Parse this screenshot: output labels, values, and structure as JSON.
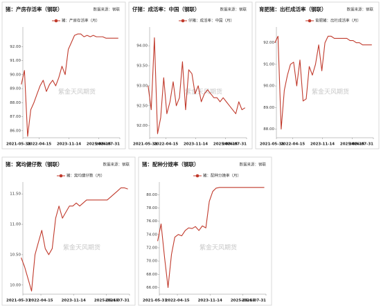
{
  "chart_data": [
    {
      "type": "line",
      "title": "猪：产房存活率（钢联）",
      "source": "数据来源：钢联",
      "watermark": "紫金天风期货",
      "x": [
        "2021-05",
        "2021-07",
        "2021-09",
        "2021-11",
        "2022-01",
        "2022-03",
        "2022-05",
        "2022-07",
        "2022-09",
        "2022-11",
        "2023-01",
        "2023-03",
        "2023-05",
        "2023-07",
        "2023-09",
        "2023-11",
        "2024-01",
        "2024-03",
        "2024-05",
        "2024-07",
        "2024-09",
        "2024-11",
        "2025-01",
        "2025-03",
        "2025-05",
        "2025-07",
        "2025-09",
        "2025-11",
        "2026-01",
        "2026-03",
        "2026-05",
        "2026-07"
      ],
      "series": [
        {
          "name": "猪：产房存活率（月）",
          "color": "#c0392b",
          "values": [
            89.3,
            90.3,
            85.6,
            87.5,
            88.0,
            88.6,
            89.2,
            89.6,
            88.8,
            89.3,
            89.6,
            89.2,
            89.8,
            90.6,
            90.0,
            91.8,
            92.3,
            92.8,
            92.9,
            92.9,
            92.7,
            92.8,
            92.7,
            92.8,
            92.7,
            92.7,
            92.7,
            92.6,
            92.6,
            92.6,
            92.6,
            92.6
          ]
        }
      ],
      "xlim": [
        "2021-05-31",
        "2026-07-31"
      ],
      "xticks": [
        "2021-05-31",
        "2022-04-15",
        "2023-11-14",
        "2025-06-15",
        "2026-07-31"
      ],
      "ylim": [
        85.5,
        93.2
      ],
      "yticks": [
        {
          "value": 86,
          "label": "86.00"
        },
        {
          "value": 87,
          "label": "87.00"
        },
        {
          "value": 88,
          "label": "88.00"
        },
        {
          "value": 89,
          "label": "89.00"
        },
        {
          "value": 90,
          "label": "90.00"
        },
        {
          "value": 91,
          "label": "91.00"
        },
        {
          "value": 92,
          "label": "92.00"
        }
      ]
    },
    {
      "type": "line",
      "title": "仔猪：成活率：中国（钢联）",
      "source": "数据来源：钢联",
      "watermark": "紫金天风期货",
      "x": [
        "2021-05",
        "2021-07",
        "2021-09",
        "2021-11",
        "2022-01",
        "2022-03",
        "2022-05",
        "2022-07",
        "2022-09",
        "2022-11",
        "2023-01",
        "2023-03",
        "2023-05",
        "2023-07",
        "2023-09",
        "2023-11",
        "2024-01",
        "2024-03",
        "2024-05",
        "2024-07",
        "2024-09",
        "2024-11",
        "2025-01",
        "2025-03",
        "2025-05",
        "2025-07",
        "2025-09",
        "2025-11",
        "2026-01",
        "2026-03",
        "2026-05",
        "2026-07"
      ],
      "series": [
        {
          "name": "仔猪：成活率：中国（月）",
          "color": "#c0392b",
          "values": [
            93.0,
            92.4,
            94.2,
            91.8,
            92.2,
            93.2,
            92.3,
            92.6,
            93.1,
            92.5,
            92.7,
            93.6,
            92.4,
            93.4,
            93.3,
            92.8,
            93.0,
            92.6,
            92.8,
            92.9,
            92.8,
            92.7,
            92.7,
            92.6,
            92.7,
            92.6,
            92.5,
            92.4,
            92.3,
            92.6,
            92.4,
            92.45
          ]
        }
      ],
      "xlim": [
        "2021-05-31",
        "2026-07-31"
      ],
      "xticks": [
        "2021-05-31",
        "2022-04-15",
        "2023-11-14",
        "2025-06-15",
        "2026-07-31"
      ],
      "ylim": [
        91.7,
        94.4
      ],
      "yticks": [
        {
          "value": 92,
          "label": "92.00"
        },
        {
          "value": 92.5,
          "label": "92.50"
        },
        {
          "value": 93,
          "label": "93.00"
        },
        {
          "value": 93.5,
          "label": "93.50"
        },
        {
          "value": 94,
          "label": "94.00"
        }
      ]
    },
    {
      "type": "line",
      "title": "育肥猪：出栏成活率（钢联）",
      "source": "数据来源：钢联",
      "watermark": "紫金天风期货",
      "x": [
        "2021-05",
        "2021-07",
        "2021-09",
        "2021-11",
        "2022-01",
        "2022-03",
        "2022-05",
        "2022-07",
        "2022-09",
        "2022-11",
        "2023-01",
        "2023-03",
        "2023-05",
        "2023-07",
        "2023-09",
        "2023-11",
        "2024-01",
        "2024-03",
        "2024-05",
        "2024-07",
        "2024-09",
        "2024-11",
        "2025-01",
        "2025-03",
        "2025-05",
        "2025-07",
        "2025-09",
        "2025-11",
        "2026-01",
        "2026-03",
        "2026-05",
        "2026-07"
      ],
      "series": [
        {
          "name": "育肥猪：出栏成活率（月）",
          "color": "#c0392b",
          "values": [
            92.0,
            92.3,
            88.0,
            89.8,
            90.5,
            91.0,
            91.1,
            90.0,
            91.2,
            89.3,
            89.4,
            90.9,
            90.5,
            91.0,
            91.9,
            90.7,
            92.0,
            92.3,
            92.3,
            92.2,
            92.2,
            92.2,
            92.2,
            92.2,
            92.1,
            92.1,
            92.0,
            92.0,
            91.9,
            91.9,
            91.9,
            91.9
          ]
        }
      ],
      "xlim": [
        "2021-05-31",
        "2026-07-31"
      ],
      "xticks": [
        "2021-05-31",
        "2022-04-15",
        "2023-11-14",
        "2025-06-15",
        "2026-07-31"
      ],
      "ylim": [
        87.6,
        92.6
      ],
      "yticks": [
        {
          "value": 88,
          "label": "88.00"
        },
        {
          "value": 89,
          "label": "89.00"
        },
        {
          "value": 90,
          "label": "90.00"
        },
        {
          "value": 91,
          "label": "91.00"
        },
        {
          "value": 92,
          "label": "92.00"
        }
      ]
    },
    {
      "type": "line",
      "title": "猪：窝均健仔数（钢联）",
      "source": "数据来源：钢联",
      "watermark": "紫金天风期货",
      "x": [
        "2021-05",
        "2021-07",
        "2021-09",
        "2021-11",
        "2022-01",
        "2022-03",
        "2022-05",
        "2022-07",
        "2022-09",
        "2022-11",
        "2023-01",
        "2023-03",
        "2023-05",
        "2023-07",
        "2023-09",
        "2023-11",
        "2024-01",
        "2024-03",
        "2024-05",
        "2024-07",
        "2024-09",
        "2024-11",
        "2025-01",
        "2025-03",
        "2025-05",
        "2025-07",
        "2025-09",
        "2025-11",
        "2026-01",
        "2026-03",
        "2026-05",
        "2026-07"
      ],
      "series": [
        {
          "name": "猪：窝均健仔数（月）",
          "color": "#c0392b",
          "values": [
            10.45,
            10.3,
            10.1,
            9.9,
            10.5,
            10.7,
            10.9,
            10.6,
            10.5,
            10.6,
            11.1,
            11.3,
            11.1,
            11.2,
            11.3,
            11.3,
            11.35,
            11.3,
            11.35,
            11.4,
            11.4,
            11.4,
            11.4,
            11.4,
            11.4,
            11.4,
            11.45,
            11.5,
            11.55,
            11.6,
            11.6,
            11.58
          ]
        }
      ],
      "xlim": [
        "2021-05-31",
        "2026-07-31"
      ],
      "xticks": [
        "2021-05-31",
        "2022-04-15",
        "2023-11-14",
        "2025-06-15",
        "2026-07-31"
      ],
      "ylim": [
        9.85,
        11.65
      ],
      "yticks": [
        {
          "value": 10,
          "label": "10.00"
        },
        {
          "value": 10.5,
          "label": "10.50"
        },
        {
          "value": 11,
          "label": "11.00"
        },
        {
          "value": 11.5,
          "label": "11.50"
        }
      ]
    },
    {
      "type": "line",
      "title": "猪：配种分娩率（钢联）",
      "source": "数据来源：钢联",
      "watermark": "紫金天风期货",
      "x": [
        "2021-05",
        "2021-07",
        "2021-09",
        "2021-11",
        "2022-01",
        "2022-03",
        "2022-05",
        "2022-07",
        "2022-09",
        "2022-11",
        "2023-01",
        "2023-03",
        "2023-05",
        "2023-07",
        "2023-09",
        "2023-11",
        "2024-01",
        "2024-03",
        "2024-05",
        "2024-07",
        "2024-09",
        "2024-11",
        "2025-01",
        "2025-03",
        "2025-05",
        "2025-07",
        "2025-09",
        "2025-11",
        "2026-01",
        "2026-03",
        "2026-05",
        "2026-07"
      ],
      "series": [
        {
          "name": "猪：配种分娩率（月）",
          "color": "#c0392b",
          "values": [
            73.0,
            75.6,
            70.5,
            66.0,
            71.0,
            73.6,
            74.0,
            73.8,
            74.6,
            75.0,
            74.9,
            75.2,
            74.6,
            75.3,
            75.0,
            79.0,
            80.5,
            81.0,
            81.1,
            81.1,
            81.1,
            81.1,
            81.1,
            81.1,
            81.1,
            81.1,
            81.1,
            81.1,
            81.1,
            81.1,
            81.1,
            81.1
          ]
        }
      ],
      "xlim": [
        "2021-05-31",
        "2026-07-31"
      ],
      "xticks": [
        "2021-05-31",
        "2022-04-15",
        "2023-11-14",
        "2025-06-15",
        "2026-07-31"
      ],
      "ylim": [
        65,
        81.5
      ],
      "yticks": [
        {
          "value": 66,
          "label": "66.00"
        },
        {
          "value": 68,
          "label": "68.00"
        },
        {
          "value": 70,
          "label": "70.00"
        },
        {
          "value": 72,
          "label": "72.00"
        },
        {
          "value": 74,
          "label": "74.00"
        },
        {
          "value": 76,
          "label": "76.00"
        },
        {
          "value": 78,
          "label": "78.00"
        },
        {
          "value": 80,
          "label": "80.00"
        }
      ]
    }
  ]
}
